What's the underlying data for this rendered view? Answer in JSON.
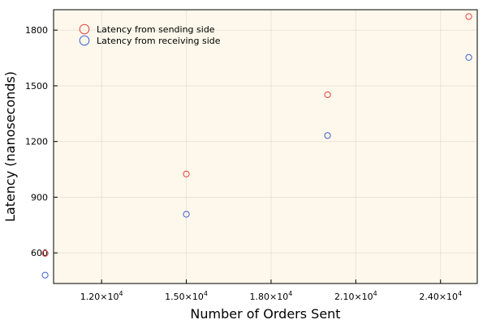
{
  "chart_data": {
    "type": "scatter",
    "title": "",
    "xlabel": "Number of Orders Sent",
    "ylabel": "Latency (nanoseconds)",
    "xlim": [
      10300,
      25300
    ],
    "ylim": [
      435,
      1910
    ],
    "xticks": [
      12000,
      15000,
      18000,
      21000,
      24000
    ],
    "xtick_labels": [
      {
        "mantissa": "1.20×10",
        "exp": "4"
      },
      {
        "mantissa": "1.50×10",
        "exp": "4"
      },
      {
        "mantissa": "1.80×10",
        "exp": "4"
      },
      {
        "mantissa": "2.10×10",
        "exp": "4"
      },
      {
        "mantissa": "2.40×10",
        "exp": "4"
      }
    ],
    "yticks": [
      600,
      900,
      1200,
      1500,
      1800
    ],
    "ytick_labels": [
      "600",
      "900",
      "1200",
      "1500",
      "1800"
    ],
    "grid": true,
    "legend_position": "top-left",
    "background": "#fdf8eb",
    "series": [
      {
        "name": "Latency from sending side",
        "color": "#e8403f",
        "points": [
          {
            "x": 10000,
            "y": 597
          },
          {
            "x": 15000,
            "y": 1025
          },
          {
            "x": 20000,
            "y": 1452
          },
          {
            "x": 25000,
            "y": 1873
          }
        ]
      },
      {
        "name": "Latency from receiving side",
        "color": "#3d5fd1",
        "points": [
          {
            "x": 10000,
            "y": 480
          },
          {
            "x": 15000,
            "y": 808
          },
          {
            "x": 20000,
            "y": 1232
          },
          {
            "x": 25000,
            "y": 1653
          }
        ]
      }
    ]
  }
}
